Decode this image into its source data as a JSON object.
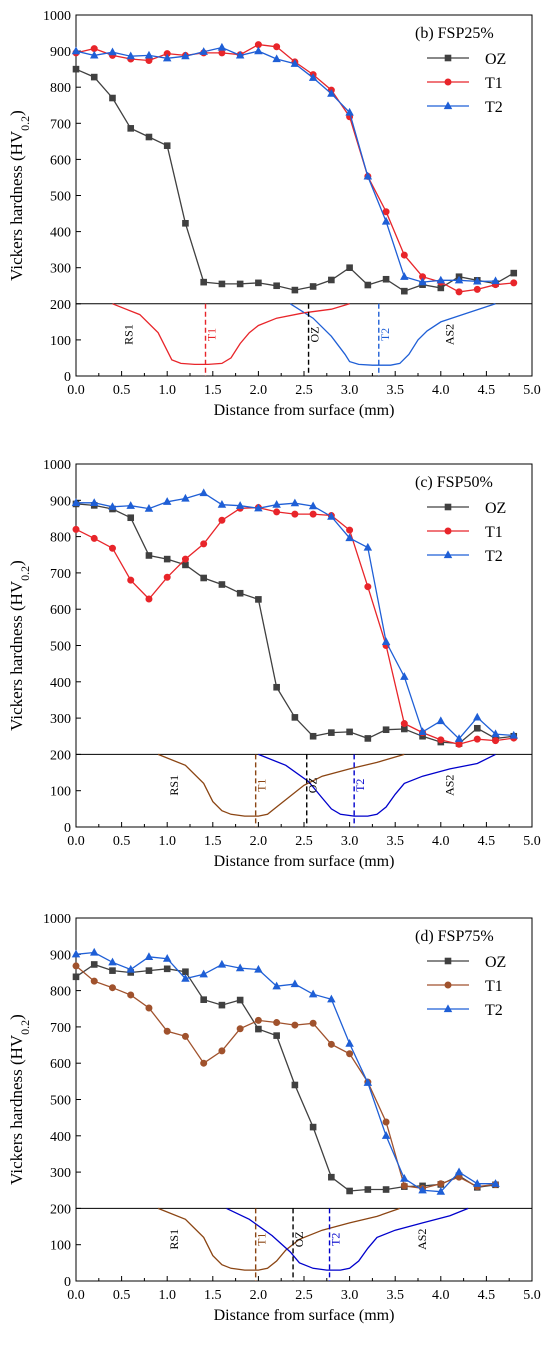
{
  "chart_data": [
    {
      "type": "line",
      "panel_label": "(b) FSP25%",
      "xlabel": "Distance from surface (mm)",
      "ylabel_main": "Vickers hardness (HV",
      "ylabel_sub": "0.2",
      "ylabel_close": ")",
      "xlim": [
        0,
        5
      ],
      "ylim": [
        0,
        1000
      ],
      "xticks": [
        "0.0",
        "0.5",
        "1.0",
        "1.5",
        "2.0",
        "2.5",
        "3.0",
        "3.5",
        "4.0",
        "4.5",
        "5.0"
      ],
      "yticks": [
        "0",
        "100",
        "200",
        "300",
        "400",
        "500",
        "600",
        "700",
        "800",
        "900",
        "1000"
      ],
      "legend_position": "top-right",
      "series": [
        {
          "name": "OZ",
          "color": "#404040",
          "marker": "square",
          "x": [
            0.0,
            0.2,
            0.4,
            0.6,
            0.8,
            1.0,
            1.2,
            1.4,
            1.6,
            1.8,
            2.0,
            2.2,
            2.4,
            2.6,
            2.8,
            3.0,
            3.2,
            3.4,
            3.6,
            3.8,
            4.0,
            4.2,
            4.4,
            4.6,
            4.8
          ],
          "y": [
            850,
            828,
            770,
            686,
            662,
            638,
            423,
            260,
            255,
            255,
            258,
            250,
            238,
            248,
            266,
            300,
            252,
            268,
            235,
            253,
            244,
            275,
            265,
            256,
            285
          ]
        },
        {
          "name": "T1",
          "color": "#e8252a",
          "marker": "circle",
          "x": [
            0.0,
            0.2,
            0.4,
            0.6,
            0.8,
            1.0,
            1.2,
            1.4,
            1.6,
            1.8,
            2.0,
            2.2,
            2.4,
            2.6,
            2.8,
            3.0,
            3.2,
            3.4,
            3.6,
            3.8,
            4.0,
            4.2,
            4.4,
            4.6,
            4.8
          ],
          "y": [
            895,
            907,
            888,
            878,
            874,
            893,
            888,
            895,
            895,
            890,
            918,
            912,
            870,
            835,
            792,
            718,
            553,
            455,
            335,
            275,
            260,
            233,
            240,
            253,
            258
          ]
        },
        {
          "name": "T2",
          "color": "#1f5fd6",
          "marker": "triangle",
          "x": [
            0.0,
            0.2,
            0.4,
            0.6,
            0.8,
            1.0,
            1.2,
            1.4,
            1.6,
            1.8,
            2.0,
            2.2,
            2.4,
            2.6,
            2.8,
            3.0,
            3.2,
            3.4,
            3.6,
            3.8,
            4.0,
            4.2,
            4.4,
            4.6
          ],
          "y": [
            900,
            888,
            897,
            886,
            888,
            880,
            886,
            898,
            910,
            888,
            900,
            878,
            865,
            826,
            782,
            730,
            553,
            428,
            275,
            260,
            265,
            265,
            262,
            263
          ]
        }
      ],
      "profiles": [
        {
          "label": "RS1",
          "color": "#e8252a",
          "x": [
            0.4,
            0.7,
            0.9,
            1.0,
            1.05,
            1.15,
            1.3,
            1.45,
            1.6,
            1.7,
            1.8,
            1.9,
            2.0,
            2.2,
            2.5
          ],
          "y": [
            200,
            170,
            120,
            70,
            45,
            35,
            32,
            32,
            35,
            50,
            90,
            120,
            140,
            160,
            175
          ]
        },
        {
          "label": "AS2",
          "color": "#1f5fd6",
          "x": [
            2.35,
            2.6,
            2.8,
            2.95,
            3.0,
            3.1,
            3.25,
            3.45,
            3.55,
            3.65,
            3.75,
            3.85,
            4.0,
            4.3,
            4.6
          ],
          "y": [
            200,
            160,
            110,
            60,
            40,
            32,
            30,
            30,
            35,
            60,
            100,
            125,
            150,
            175,
            200
          ]
        },
        {
          "label": "",
          "color": "#e8252a",
          "x": [
            2.5,
            2.8,
            3.0
          ],
          "y": [
            175,
            185,
            200
          ]
        }
      ],
      "markers": [
        {
          "label": "T1",
          "x": 1.42,
          "color": "#e8252a"
        },
        {
          "label": "OZ",
          "x": 2.55,
          "color": "#000000"
        },
        {
          "label": "T2",
          "x": 3.32,
          "color": "#1f5fd6"
        }
      ]
    },
    {
      "type": "line",
      "panel_label": "(c) FSP50%",
      "xlabel": "Distance from surface (mm)",
      "ylabel_main": "Vickers hardness (HV",
      "ylabel_sub": "0.2",
      "ylabel_close": ")",
      "xlim": [
        0,
        5
      ],
      "ylim": [
        0,
        1000
      ],
      "xticks": [
        "0.0",
        "0.5",
        "1.0",
        "1.5",
        "2.0",
        "2.5",
        "3.0",
        "3.5",
        "4.0",
        "4.5",
        "5.0"
      ],
      "yticks": [
        "0",
        "100",
        "200",
        "300",
        "400",
        "500",
        "600",
        "700",
        "800",
        "900",
        "1000"
      ],
      "legend_position": "top-right",
      "series": [
        {
          "name": "OZ",
          "color": "#404040",
          "marker": "square",
          "x": [
            0.0,
            0.2,
            0.4,
            0.6,
            0.8,
            1.0,
            1.2,
            1.4,
            1.6,
            1.8,
            2.0,
            2.2,
            2.4,
            2.6,
            2.8,
            3.0,
            3.2,
            3.4,
            3.6,
            3.8,
            4.0,
            4.2,
            4.4,
            4.6,
            4.8
          ],
          "y": [
            890,
            886,
            876,
            852,
            748,
            738,
            722,
            686,
            668,
            644,
            627,
            385,
            302,
            250,
            260,
            262,
            244,
            268,
            270,
            250,
            234,
            230,
            272,
            244,
            250
          ]
        },
        {
          "name": "T1",
          "color": "#e8252a",
          "marker": "circle",
          "x": [
            0.0,
            0.2,
            0.4,
            0.6,
            0.8,
            1.0,
            1.2,
            1.4,
            1.6,
            1.8,
            2.0,
            2.2,
            2.4,
            2.6,
            2.8,
            3.0,
            3.2,
            3.4,
            3.6,
            3.8,
            4.0,
            4.2,
            4.4,
            4.6,
            4.8
          ],
          "y": [
            820,
            795,
            768,
            680,
            628,
            688,
            738,
            780,
            845,
            878,
            880,
            868,
            862,
            862,
            858,
            818,
            662,
            500,
            285,
            260,
            240,
            228,
            242,
            238,
            245
          ]
        },
        {
          "name": "T2",
          "color": "#1f5fd6",
          "marker": "triangle",
          "x": [
            0.0,
            0.2,
            0.4,
            0.6,
            0.8,
            1.0,
            1.2,
            1.4,
            1.6,
            1.8,
            2.0,
            2.2,
            2.4,
            2.6,
            2.8,
            3.0,
            3.2,
            3.4,
            3.6,
            3.8,
            4.0,
            4.2,
            4.4,
            4.6,
            4.8
          ],
          "y": [
            893,
            893,
            882,
            885,
            877,
            896,
            905,
            920,
            888,
            885,
            878,
            888,
            892,
            884,
            855,
            796,
            770,
            510,
            414,
            262,
            292,
            243,
            302,
            256,
            252
          ]
        }
      ],
      "profiles": [
        {
          "label": "RS1",
          "color": "#8b4513",
          "x": [
            0.9,
            1.2,
            1.4,
            1.5,
            1.6,
            1.7,
            1.85,
            2.0,
            2.1,
            2.2,
            2.35,
            2.5,
            2.7,
            3.0,
            3.3,
            3.6
          ],
          "y": [
            200,
            170,
            120,
            70,
            45,
            35,
            30,
            30,
            35,
            55,
            85,
            115,
            140,
            160,
            178,
            200
          ]
        },
        {
          "label": "AS2",
          "color": "#0000cc",
          "x": [
            2.0,
            2.3,
            2.55,
            2.7,
            2.8,
            2.9,
            3.05,
            3.2,
            3.3,
            3.4,
            3.5,
            3.6,
            3.8,
            4.1,
            4.4,
            4.6
          ],
          "y": [
            200,
            170,
            125,
            80,
            50,
            35,
            30,
            30,
            35,
            55,
            90,
            120,
            140,
            160,
            175,
            200
          ]
        }
      ],
      "markers": [
        {
          "label": "T1",
          "x": 1.97,
          "color": "#8b4513"
        },
        {
          "label": "OZ",
          "x": 2.53,
          "color": "#000000"
        },
        {
          "label": "T2",
          "x": 3.05,
          "color": "#0000cc"
        }
      ]
    },
    {
      "type": "line",
      "panel_label": "(d) FSP75%",
      "xlabel": "Distance from surface (mm)",
      "ylabel_main": "Vickers hardness (HV",
      "ylabel_sub": "0.2",
      "ylabel_close": ")",
      "xlim": [
        0,
        5
      ],
      "ylim": [
        0,
        1000
      ],
      "xticks": [
        "0.0",
        "0.5",
        "1.0",
        "1.5",
        "2.0",
        "2.5",
        "3.0",
        "3.5",
        "4.0",
        "4.5",
        "5.0"
      ],
      "yticks": [
        "0",
        "100",
        "200",
        "300",
        "400",
        "500",
        "600",
        "700",
        "800",
        "900",
        "1000"
      ],
      "legend_position": "top-right",
      "series": [
        {
          "name": "OZ",
          "color": "#404040",
          "marker": "square",
          "x": [
            0.0,
            0.2,
            0.4,
            0.6,
            0.8,
            1.0,
            1.2,
            1.4,
            1.6,
            1.8,
            2.0,
            2.2,
            2.4,
            2.6,
            2.8,
            3.0,
            3.2,
            3.4,
            3.6,
            3.8,
            4.0,
            4.2,
            4.4,
            4.6
          ],
          "y": [
            838,
            872,
            855,
            850,
            855,
            860,
            852,
            775,
            760,
            774,
            694,
            676,
            540,
            424,
            286,
            248,
            252,
            252,
            260,
            262,
            266,
            290,
            258,
            265
          ]
        },
        {
          "name": "T1",
          "color": "#a0522d",
          "marker": "circle",
          "x": [
            0.0,
            0.2,
            0.4,
            0.6,
            0.8,
            1.0,
            1.2,
            1.4,
            1.6,
            1.8,
            2.0,
            2.2,
            2.4,
            2.6,
            2.8,
            3.0,
            3.2,
            3.4,
            3.6,
            3.8,
            4.0,
            4.2,
            4.4,
            4.6
          ],
          "y": [
            868,
            826,
            808,
            788,
            752,
            688,
            674,
            600,
            634,
            695,
            718,
            712,
            705,
            710,
            652,
            626,
            548,
            438,
            262,
            255,
            268,
            286,
            260,
            266
          ]
        },
        {
          "name": "T2",
          "color": "#1f5fd6",
          "marker": "triangle",
          "x": [
            0.0,
            0.2,
            0.4,
            0.6,
            0.8,
            1.0,
            1.2,
            1.4,
            1.6,
            1.8,
            2.0,
            2.2,
            2.4,
            2.6,
            2.8,
            3.0,
            3.2,
            3.4,
            3.6,
            3.8,
            4.0,
            4.2,
            4.4,
            4.6
          ],
          "y": [
            900,
            905,
            878,
            858,
            893,
            888,
            833,
            845,
            872,
            862,
            858,
            812,
            818,
            790,
            776,
            654,
            546,
            400,
            282,
            250,
            246,
            300,
            268,
            268
          ]
        }
      ],
      "profiles": [
        {
          "label": "RS1",
          "color": "#8b4513",
          "x": [
            0.9,
            1.2,
            1.4,
            1.5,
            1.6,
            1.7,
            1.85,
            2.0,
            2.1,
            2.2,
            2.3,
            2.45,
            2.7,
            3.0,
            3.3,
            3.55
          ],
          "y": [
            200,
            170,
            120,
            70,
            45,
            35,
            30,
            30,
            35,
            55,
            85,
            115,
            140,
            160,
            178,
            200
          ]
        },
        {
          "label": "AS2",
          "color": "#0000cc",
          "x": [
            1.65,
            1.9,
            2.15,
            2.35,
            2.45,
            2.6,
            2.75,
            2.9,
            3.0,
            3.1,
            3.2,
            3.3,
            3.5,
            3.8,
            4.1,
            4.3
          ],
          "y": [
            200,
            170,
            125,
            80,
            50,
            35,
            30,
            30,
            35,
            55,
            90,
            120,
            140,
            160,
            180,
            200
          ]
        }
      ],
      "markers": [
        {
          "label": "T1",
          "x": 1.97,
          "color": "#8b4513"
        },
        {
          "label": "OZ",
          "x": 2.38,
          "color": "#000000"
        },
        {
          "label": "T2",
          "x": 2.78,
          "color": "#0000cc"
        }
      ]
    }
  ]
}
